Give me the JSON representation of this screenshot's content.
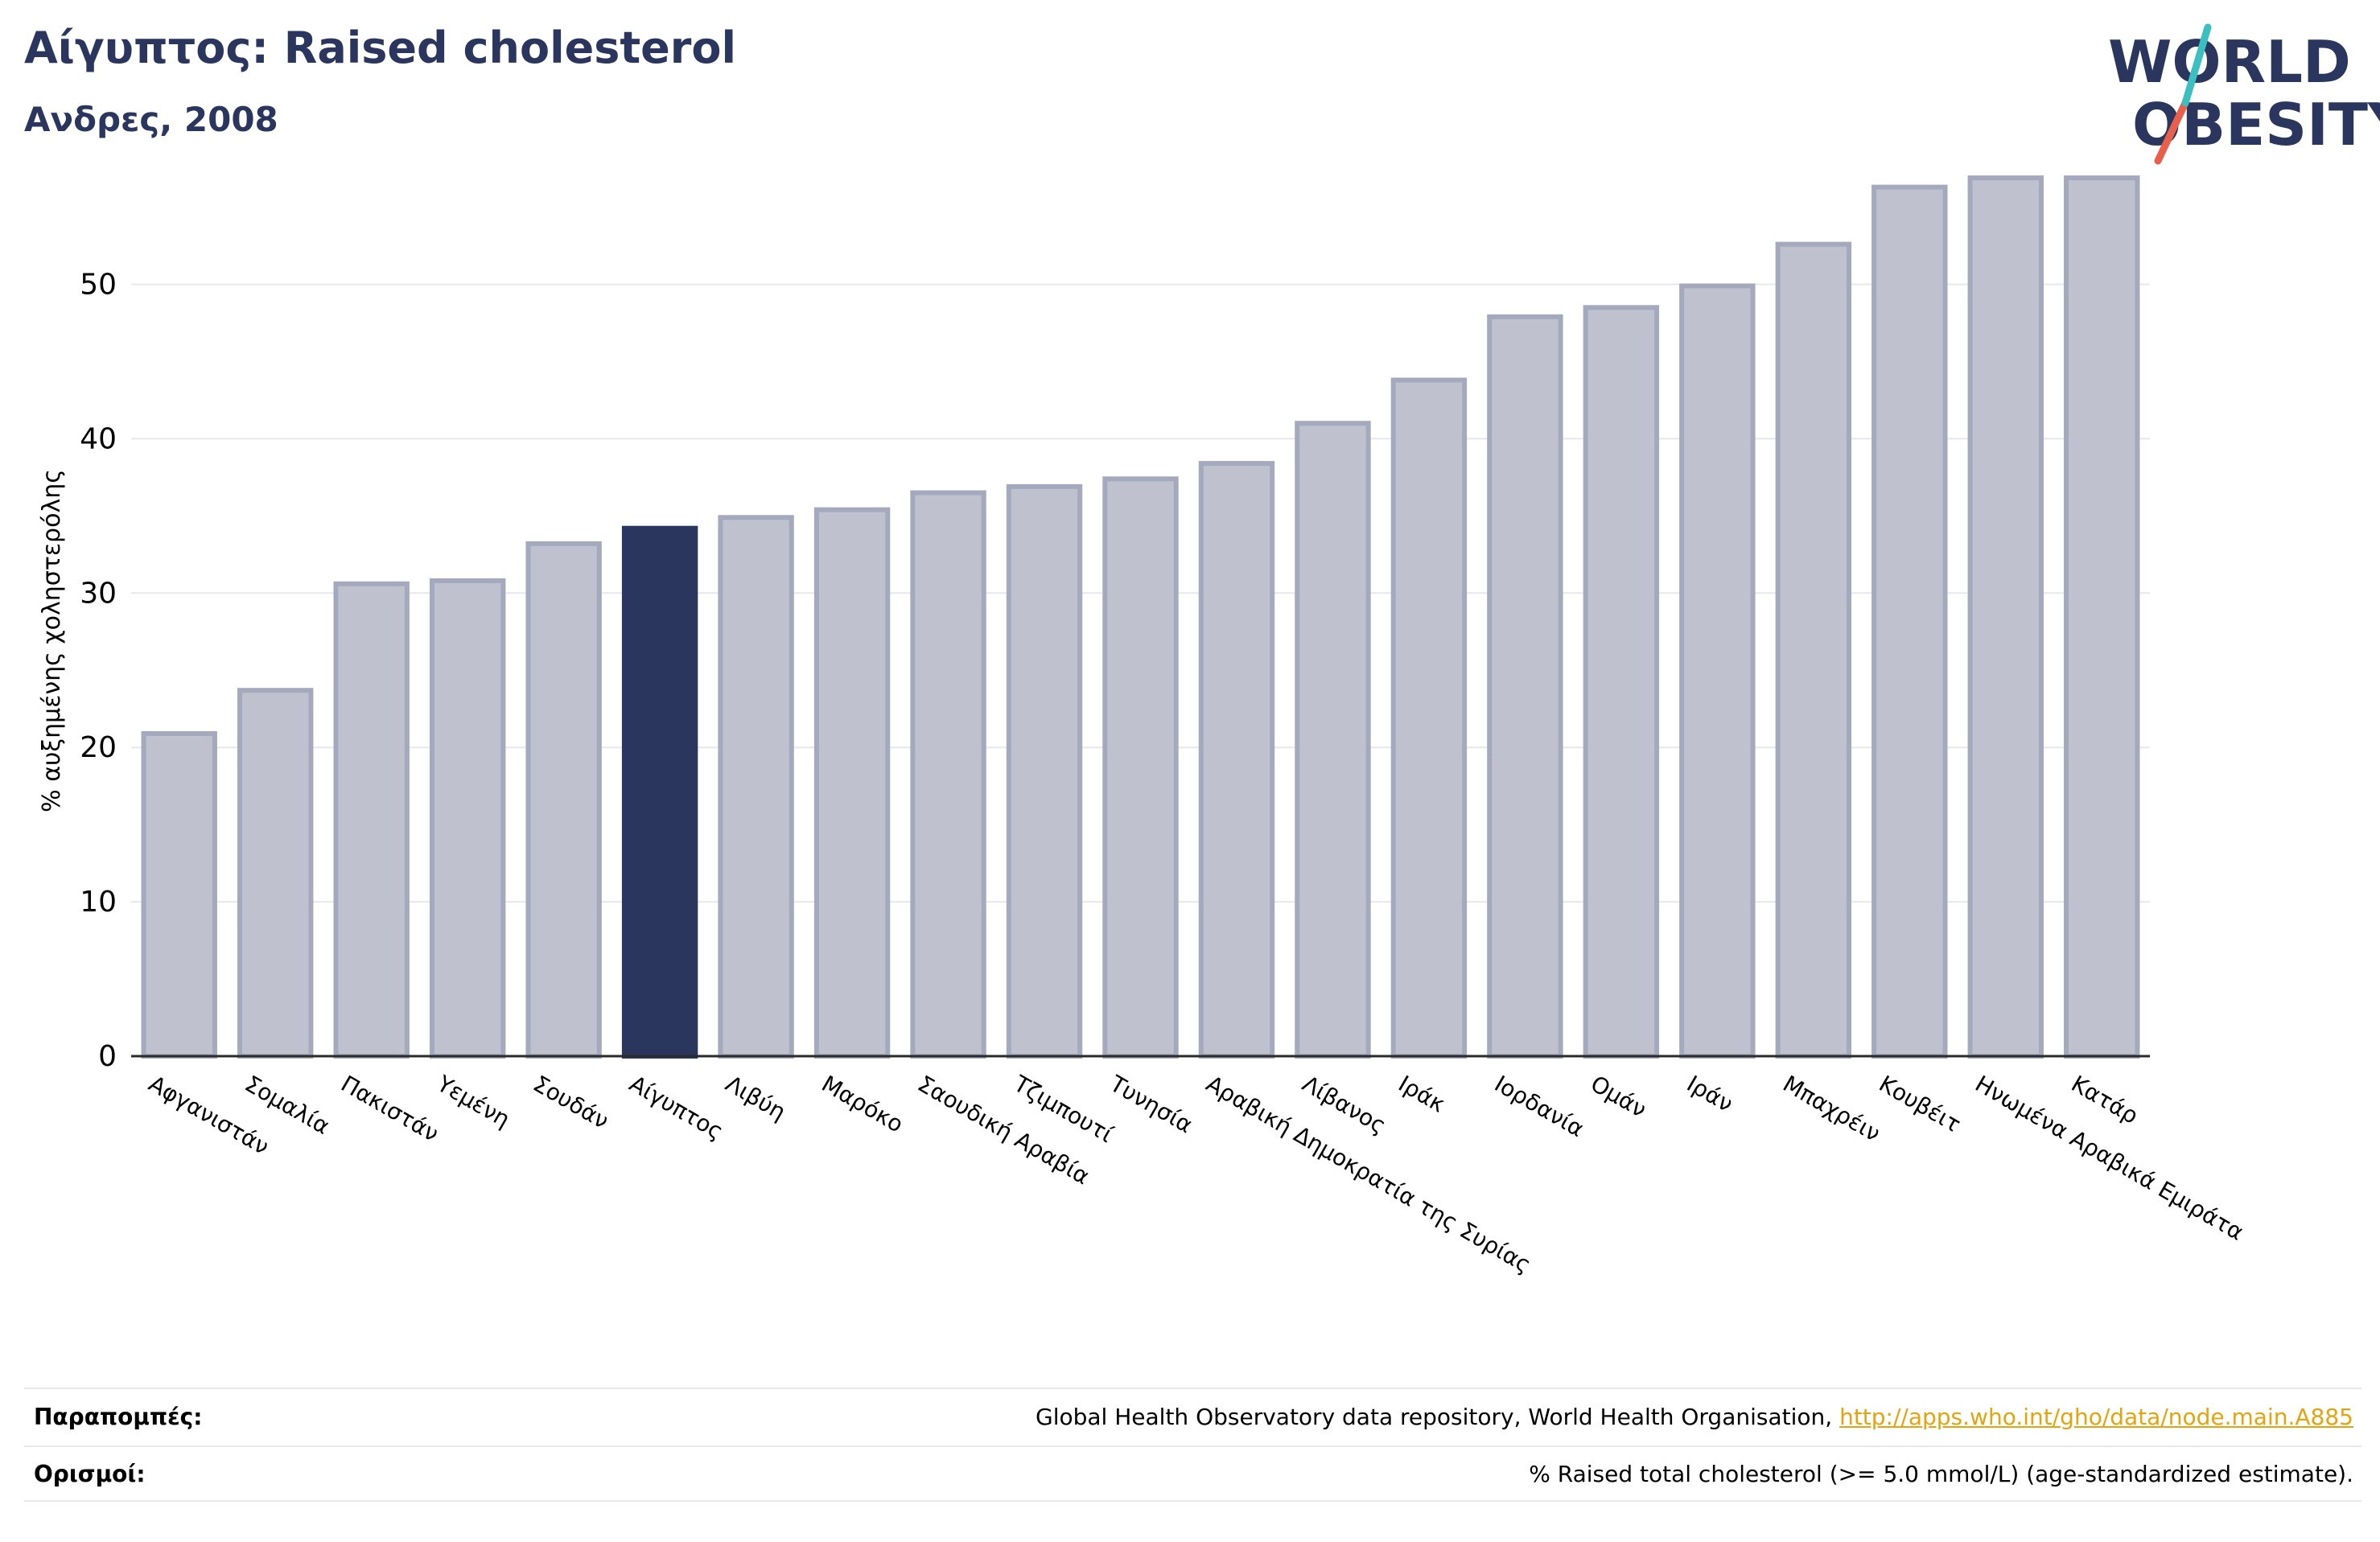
{
  "header": {
    "title": "Αίγυπτος: Raised cholesterol",
    "subtitle": "Ανδρες, 2008"
  },
  "logo": {
    "line1": "WORLD",
    "line2": "OBESITY",
    "colors": {
      "text": "#2b365f",
      "slash_top": "#3bbfc1",
      "slash_bottom": "#e8604c"
    }
  },
  "chart_data": {
    "type": "bar",
    "title": "",
    "xlabel": "",
    "ylabel": "% αυξημένης χοληστερόλης",
    "ylim": [
      0,
      58
    ],
    "yticks": [
      0,
      10,
      20,
      30,
      40,
      50
    ],
    "grid": true,
    "highlight": "Αίγυπτος",
    "colors": {
      "bar": "#bfc2ce",
      "bar_edge": "#a4a9bd",
      "highlight": "#2b365f",
      "grid": "#e8e8ec"
    },
    "categories": [
      "Αφγανιστάν",
      "Σομαλία",
      "Πακιστάν",
      "Υεμένη",
      "Σουδάν",
      "Αίγυπτος",
      "Λιβύη",
      "Μαρόκο",
      "Σαουδική Αραβία",
      "Τζιμπουτί",
      "Τυνησία",
      "Αραβική Δημοκρατία της Συρίας",
      "Λίβανος",
      "Ιράκ",
      "Ιορδανία",
      "Ομάν",
      "Ιράν",
      "Μπαχρέιν",
      "Κουβέιτ",
      "Ηνωμένα Αραβικά Εμιράτα",
      "Κατάρ"
    ],
    "values": [
      20.9,
      23.7,
      30.6,
      30.8,
      33.2,
      34.2,
      34.9,
      35.4,
      36.5,
      36.9,
      37.4,
      38.4,
      41.0,
      43.8,
      47.9,
      48.5,
      49.9,
      52.6,
      56.3,
      56.9,
      56.9
    ]
  },
  "footer": {
    "refs_label": "Παραπομπές:",
    "refs_text": "Global Health Observatory data repository, World Health Organisation, ",
    "refs_link": "http://apps.who.int/gho/data/node.main.A885",
    "defs_label": "Ορισμοί:",
    "defs_text": "% Raised total cholesterol (>= 5.0 mmol/L) (age-standardized estimate)."
  }
}
